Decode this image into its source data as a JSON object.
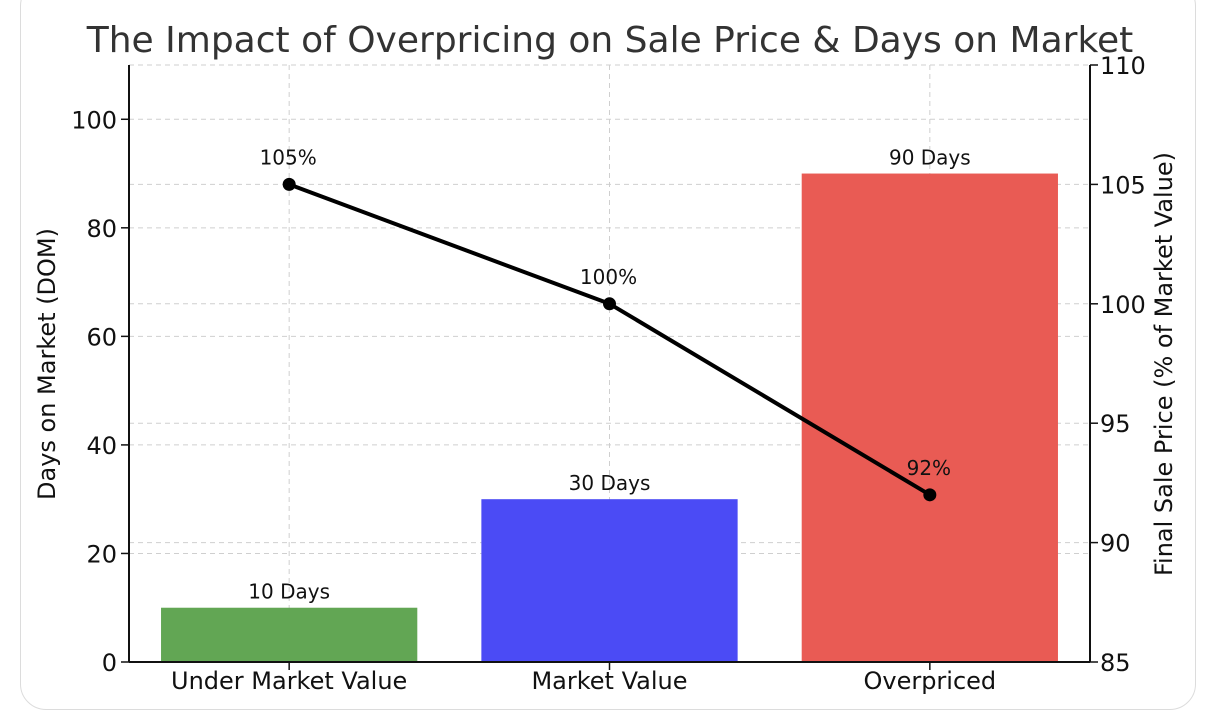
{
  "chart_data": {
    "type": "bar",
    "title": "The Impact of Overpricing on Sale Price & Days on Market",
    "categories": [
      "Under Market Value",
      "Market Value",
      "Overpriced"
    ],
    "series": [
      {
        "axis": "left",
        "type": "bar",
        "values": [
          10,
          30,
          90
        ],
        "colors": [
          "#62a654",
          "#4b4bf5",
          "#e95b54"
        ],
        "labels": [
          "10 Days",
          "30 Days",
          "90 Days"
        ]
      },
      {
        "axis": "right",
        "type": "line",
        "values": [
          105,
          100,
          92
        ],
        "color": "#000000",
        "labels": [
          "105%",
          "100%",
          "92%"
        ]
      }
    ],
    "ylabel": "Days on Market (DOM)",
    "y2label": "Final Sale Price (% of Market Value)",
    "ylim": [
      0,
      110
    ],
    "y2lim": [
      85,
      110
    ],
    "yticks": [
      0,
      20,
      40,
      60,
      80,
      100
    ],
    "y2ticks": [
      85,
      90,
      95,
      100,
      105,
      110
    ],
    "grid": true
  }
}
